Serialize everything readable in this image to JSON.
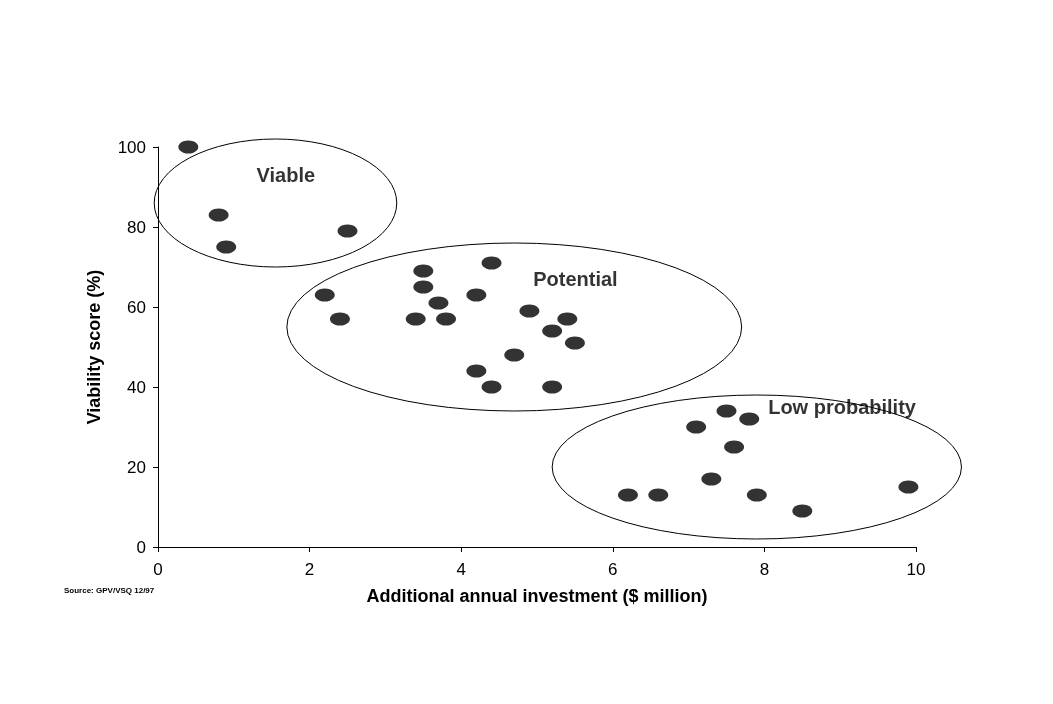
{
  "chart_data": {
    "type": "scatter",
    "xlabel": "Additional annual investment ($ million)",
    "ylabel": "Viability score (%)",
    "x": [
      0.4,
      0.8,
      0.9,
      2.5,
      2.2,
      2.4,
      3.5,
      3.5,
      3.7,
      3.4,
      3.8,
      4.4,
      4.2,
      4.9,
      5.2,
      5.4,
      5.5,
      4.7,
      4.2,
      4.4,
      5.2,
      7.1,
      7.5,
      7.8,
      7.6,
      7.3,
      6.2,
      6.6,
      7.9,
      8.5,
      9.9
    ],
    "values": [
      100,
      83,
      75,
      79,
      63,
      57,
      69,
      65,
      61,
      57,
      57,
      71,
      63,
      59,
      54,
      57,
      51,
      48,
      44,
      40,
      40,
      30,
      34,
      32,
      25,
      17,
      13,
      13,
      13,
      9,
      15
    ],
    "color": "#000000",
    "marker": "circle",
    "grid": false,
    "xlim": [
      0,
      10
    ],
    "xticks": [
      0,
      2,
      4,
      6,
      8,
      10
    ],
    "ylim": [
      0,
      100
    ],
    "yticks": [
      0,
      20,
      40,
      60,
      80,
      100
    ],
    "annotations": [
      "Viable",
      "Potential",
      "Low probability",
      "Source: GPV/VSQ 12/97"
    ]
  }
}
